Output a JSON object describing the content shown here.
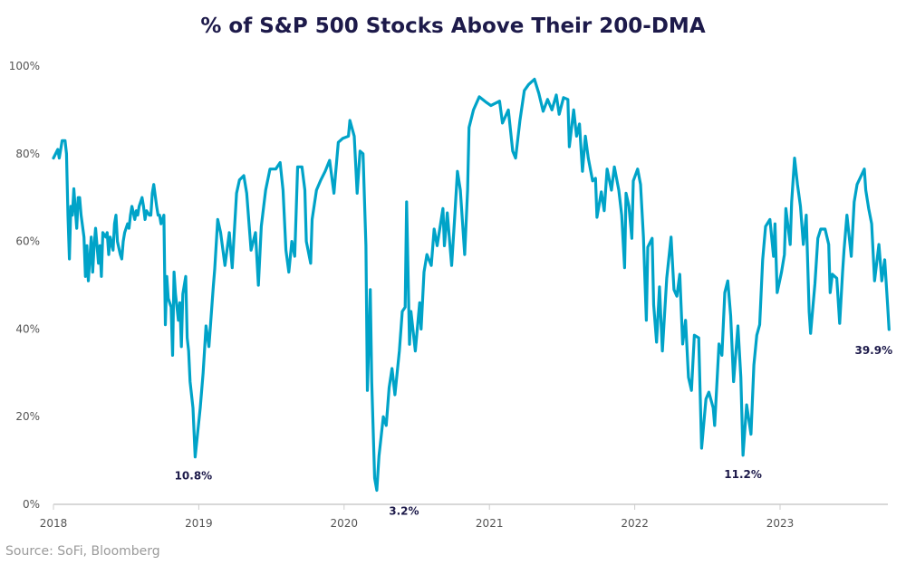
{
  "chart_data": {
    "type": "line",
    "title": "% of S&P 500 Stocks Above Their 200-DMA",
    "xlabel": "",
    "ylabel": "",
    "source": "Source: SoFi, Bloomberg",
    "xlim": [
      2018,
      2023.75
    ],
    "ylim": [
      0,
      100
    ],
    "x_ticks": [
      2018,
      2019,
      2020,
      2021,
      2022,
      2023
    ],
    "x_tick_labels": [
      "2018",
      "2019",
      "2020",
      "2021",
      "2022",
      "2023"
    ],
    "y_ticks": [
      0,
      20,
      40,
      60,
      80,
      100
    ],
    "y_tick_labels": [
      "0%",
      "20%",
      "40%",
      "60%",
      "80%",
      "100%"
    ],
    "grid": false,
    "line_color": "#00a3c8",
    "title_color": "#1d1a4a",
    "annotations": [
      {
        "text": "10.8%",
        "x": 2018.975,
        "y": 10.8
      },
      {
        "text": "3.2%",
        "x": 2020.225,
        "y": 3.2
      },
      {
        "text": "11.2%",
        "x": 2022.745,
        "y": 11.2
      },
      {
        "text": "39.9%",
        "x": 2023.75,
        "y": 39.9
      }
    ],
    "series": [
      {
        "points": [
          [
            2018.0,
            79
          ],
          [
            2018.03,
            81
          ],
          [
            2018.04,
            79
          ],
          [
            2018.06,
            83
          ],
          [
            2018.08,
            83
          ],
          [
            2018.09,
            80
          ],
          [
            2018.1,
            66
          ],
          [
            2018.11,
            56
          ],
          [
            2018.12,
            68
          ],
          [
            2018.13,
            66
          ],
          [
            2018.14,
            72
          ],
          [
            2018.16,
            63
          ],
          [
            2018.17,
            70
          ],
          [
            2018.18,
            70
          ],
          [
            2018.19,
            66
          ],
          [
            2018.21,
            61
          ],
          [
            2018.22,
            52
          ],
          [
            2018.23,
            59
          ],
          [
            2018.24,
            51
          ],
          [
            2018.26,
            61
          ],
          [
            2018.27,
            53
          ],
          [
            2018.28,
            59
          ],
          [
            2018.29,
            63
          ],
          [
            2018.31,
            55
          ],
          [
            2018.32,
            59
          ],
          [
            2018.33,
            52
          ],
          [
            2018.34,
            62
          ],
          [
            2018.36,
            61
          ],
          [
            2018.37,
            62
          ],
          [
            2018.38,
            57
          ],
          [
            2018.39,
            61
          ],
          [
            2018.41,
            58
          ],
          [
            2018.42,
            64
          ],
          [
            2018.43,
            66
          ],
          [
            2018.44,
            60
          ],
          [
            2018.46,
            57
          ],
          [
            2018.47,
            56
          ],
          [
            2018.48,
            60
          ],
          [
            2018.49,
            62
          ],
          [
            2018.51,
            64
          ],
          [
            2018.52,
            63
          ],
          [
            2018.53,
            66
          ],
          [
            2018.54,
            68
          ],
          [
            2018.56,
            65
          ],
          [
            2018.57,
            67
          ],
          [
            2018.58,
            66
          ],
          [
            2018.59,
            68
          ],
          [
            2018.61,
            70
          ],
          [
            2018.62,
            68
          ],
          [
            2018.63,
            65
          ],
          [
            2018.64,
            67
          ],
          [
            2018.66,
            66
          ],
          [
            2018.67,
            66
          ],
          [
            2018.68,
            71
          ],
          [
            2018.69,
            73
          ],
          [
            2018.71,
            68
          ],
          [
            2018.72,
            66
          ],
          [
            2018.73,
            66
          ],
          [
            2018.74,
            64
          ],
          [
            2018.76,
            66
          ],
          [
            2018.77,
            41
          ],
          [
            2018.78,
            52
          ],
          [
            2018.79,
            47
          ],
          [
            2018.81,
            45
          ],
          [
            2018.82,
            34
          ],
          [
            2018.83,
            53
          ],
          [
            2018.84,
            48
          ],
          [
            2018.86,
            42
          ],
          [
            2018.87,
            46
          ],
          [
            2018.88,
            36
          ],
          [
            2018.89,
            48
          ],
          [
            2018.91,
            52
          ],
          [
            2018.92,
            38
          ],
          [
            2018.93,
            35
          ],
          [
            2018.94,
            28
          ],
          [
            2018.96,
            22
          ],
          [
            2018.975,
            10.8
          ],
          [
            2019.01,
            22
          ],
          [
            2019.03,
            30
          ],
          [
            2019.05,
            40.7
          ],
          [
            2019.07,
            36
          ],
          [
            2019.1,
            49.6
          ],
          [
            2019.11,
            53.7
          ],
          [
            2019.13,
            65
          ],
          [
            2019.15,
            62
          ],
          [
            2019.18,
            54.5
          ],
          [
            2019.21,
            62
          ],
          [
            2019.23,
            54
          ],
          [
            2019.26,
            71
          ],
          [
            2019.28,
            74
          ],
          [
            2019.31,
            75
          ],
          [
            2019.33,
            71
          ],
          [
            2019.36,
            58
          ],
          [
            2019.39,
            62
          ],
          [
            2019.41,
            50
          ],
          [
            2019.43,
            63.4
          ],
          [
            2019.46,
            71.7
          ],
          [
            2019.49,
            76.5
          ],
          [
            2019.53,
            76.5
          ],
          [
            2019.56,
            78
          ],
          [
            2019.58,
            71.7
          ],
          [
            2019.6,
            58
          ],
          [
            2019.62,
            53
          ],
          [
            2019.64,
            60
          ],
          [
            2019.66,
            56.6
          ],
          [
            2019.68,
            77
          ],
          [
            2019.71,
            77
          ],
          [
            2019.73,
            71.7
          ],
          [
            2019.74,
            60
          ],
          [
            2019.77,
            55
          ],
          [
            2019.78,
            65
          ],
          [
            2019.81,
            71.7
          ],
          [
            2019.84,
            74
          ],
          [
            2019.87,
            76
          ],
          [
            2019.9,
            78.5
          ],
          [
            2019.93,
            71
          ],
          [
            2019.94,
            75
          ],
          [
            2019.96,
            82.6
          ],
          [
            2019.99,
            83.5
          ],
          [
            2020.03,
            84
          ],
          [
            2020.04,
            87.6
          ],
          [
            2020.07,
            84
          ],
          [
            2020.09,
            71
          ],
          [
            2020.11,
            80.6
          ],
          [
            2020.13,
            80
          ],
          [
            2020.15,
            59
          ],
          [
            2020.16,
            26
          ],
          [
            2020.18,
            49
          ],
          [
            2020.19,
            28
          ],
          [
            2020.21,
            6
          ],
          [
            2020.225,
            3.2
          ],
          [
            2020.24,
            11
          ],
          [
            2020.27,
            20
          ],
          [
            2020.29,
            18
          ],
          [
            2020.31,
            26.6
          ],
          [
            2020.33,
            31
          ],
          [
            2020.35,
            25
          ],
          [
            2020.38,
            35
          ],
          [
            2020.4,
            44
          ],
          [
            2020.42,
            45
          ],
          [
            2020.43,
            69
          ],
          [
            2020.45,
            36.5
          ],
          [
            2020.46,
            44
          ],
          [
            2020.49,
            35
          ],
          [
            2020.52,
            46
          ],
          [
            2020.53,
            40
          ],
          [
            2020.55,
            53
          ],
          [
            2020.57,
            57
          ],
          [
            2020.6,
            54.5
          ],
          [
            2020.62,
            62.8
          ],
          [
            2020.64,
            59
          ],
          [
            2020.68,
            67.5
          ],
          [
            2020.69,
            59
          ],
          [
            2020.71,
            66.5
          ],
          [
            2020.74,
            54.5
          ],
          [
            2020.76,
            65
          ],
          [
            2020.78,
            76
          ],
          [
            2020.8,
            71.7
          ],
          [
            2020.83,
            57
          ],
          [
            2020.85,
            71.7
          ],
          [
            2020.86,
            86
          ],
          [
            2020.89,
            90
          ],
          [
            2020.93,
            93
          ],
          [
            2020.98,
            91.7
          ],
          [
            2021.01,
            91
          ],
          [
            2021.07,
            92
          ],
          [
            2021.09,
            87
          ],
          [
            2021.13,
            90
          ],
          [
            2021.16,
            80.6
          ],
          [
            2021.18,
            79
          ],
          [
            2021.21,
            87.6
          ],
          [
            2021.24,
            94.4
          ],
          [
            2021.27,
            95.8
          ],
          [
            2021.31,
            97
          ],
          [
            2021.34,
            93.8
          ],
          [
            2021.37,
            89.7
          ],
          [
            2021.4,
            92.4
          ],
          [
            2021.43,
            90
          ],
          [
            2021.46,
            93.4
          ],
          [
            2021.48,
            89
          ],
          [
            2021.51,
            92.8
          ],
          [
            2021.54,
            92.4
          ],
          [
            2021.55,
            81.6
          ],
          [
            2021.58,
            90
          ],
          [
            2021.6,
            84
          ],
          [
            2021.62,
            86.8
          ],
          [
            2021.64,
            76
          ],
          [
            2021.66,
            84
          ],
          [
            2021.68,
            79
          ],
          [
            2021.71,
            73.8
          ],
          [
            2021.73,
            74.4
          ],
          [
            2021.74,
            65.5
          ],
          [
            2021.77,
            71.3
          ],
          [
            2021.79,
            67
          ],
          [
            2021.81,
            76.5
          ],
          [
            2021.84,
            71.7
          ],
          [
            2021.86,
            77
          ],
          [
            2021.89,
            71.7
          ],
          [
            2021.91,
            66
          ],
          [
            2021.93,
            54
          ],
          [
            2021.94,
            71
          ],
          [
            2021.96,
            68
          ],
          [
            2021.98,
            60.7
          ],
          [
            2021.99,
            73.8
          ],
          [
            2022.02,
            76.5
          ],
          [
            2022.04,
            73
          ],
          [
            2022.06,
            61
          ],
          [
            2022.08,
            42
          ],
          [
            2022.09,
            58.7
          ],
          [
            2022.12,
            60.7
          ],
          [
            2022.13,
            45.5
          ],
          [
            2022.15,
            37
          ],
          [
            2022.17,
            49.6
          ],
          [
            2022.19,
            35
          ],
          [
            2022.22,
            51.6
          ],
          [
            2022.25,
            61
          ],
          [
            2022.27,
            49
          ],
          [
            2022.29,
            47.5
          ],
          [
            2022.31,
            52.5
          ],
          [
            2022.33,
            36.6
          ],
          [
            2022.35,
            42
          ],
          [
            2022.37,
            29
          ],
          [
            2022.39,
            26
          ],
          [
            2022.41,
            38.6
          ],
          [
            2022.44,
            38
          ],
          [
            2022.46,
            12.8
          ],
          [
            2022.49,
            24
          ],
          [
            2022.51,
            25.6
          ],
          [
            2022.54,
            22
          ],
          [
            2022.55,
            18
          ],
          [
            2022.58,
            36.6
          ],
          [
            2022.6,
            34
          ],
          [
            2022.62,
            48.3
          ],
          [
            2022.64,
            51
          ],
          [
            2022.66,
            43
          ],
          [
            2022.68,
            28
          ],
          [
            2022.71,
            40.7
          ],
          [
            2022.73,
            29
          ],
          [
            2022.745,
            11.2
          ],
          [
            2022.77,
            22.7
          ],
          [
            2022.8,
            16
          ],
          [
            2022.82,
            31.8
          ],
          [
            2022.84,
            38.6
          ],
          [
            2022.86,
            41
          ],
          [
            2022.88,
            55.8
          ],
          [
            2022.9,
            63.4
          ],
          [
            2022.93,
            65
          ],
          [
            2022.955,
            56.6
          ],
          [
            2022.965,
            64
          ],
          [
            2022.98,
            48.3
          ],
          [
            2023.01,
            53
          ],
          [
            2023.03,
            57
          ],
          [
            2023.04,
            67.5
          ],
          [
            2023.07,
            59.3
          ],
          [
            2023.08,
            69
          ],
          [
            2023.1,
            79
          ],
          [
            2023.12,
            73
          ],
          [
            2023.14,
            68
          ],
          [
            2023.16,
            59.3
          ],
          [
            2023.18,
            66
          ],
          [
            2023.2,
            44
          ],
          [
            2023.21,
            39
          ],
          [
            2023.24,
            50.4
          ],
          [
            2023.26,
            60.7
          ],
          [
            2023.28,
            62.8
          ],
          [
            2023.31,
            62.8
          ],
          [
            2023.335,
            59.3
          ],
          [
            2023.345,
            48.3
          ],
          [
            2023.36,
            52.5
          ],
          [
            2023.39,
            51.6
          ],
          [
            2023.41,
            41.3
          ],
          [
            2023.43,
            53
          ],
          [
            2023.44,
            58
          ],
          [
            2023.46,
            66
          ],
          [
            2023.49,
            56.6
          ],
          [
            2023.51,
            69
          ],
          [
            2023.53,
            73
          ],
          [
            2023.55,
            74.4
          ],
          [
            2023.58,
            76.5
          ],
          [
            2023.59,
            71.7
          ],
          [
            2023.61,
            67.5
          ],
          [
            2023.63,
            64
          ],
          [
            2023.65,
            51
          ],
          [
            2023.68,
            59.3
          ],
          [
            2023.7,
            51
          ],
          [
            2023.72,
            55.8
          ],
          [
            2023.74,
            45.5
          ],
          [
            2023.75,
            39.9
          ]
        ]
      }
    ]
  }
}
